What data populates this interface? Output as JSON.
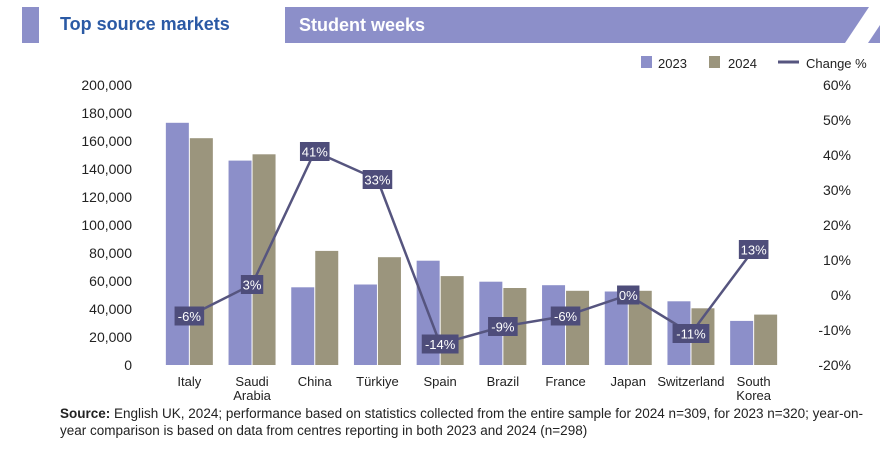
{
  "header": {
    "left_title": "Top source markets",
    "right_title": "Student weeks"
  },
  "colors": {
    "series_2023": "#8c8fc9",
    "series_2024": "#9b957d",
    "change_line": "#56557f",
    "label_box": "#4e4d7a",
    "accent": "#8c8fc9",
    "title_blue": "#2b5aa5"
  },
  "chart_data": {
    "type": "bar",
    "categories": [
      "Italy",
      "Saudi\nArabia",
      "China",
      "Türkiye",
      "Spain",
      "Brazil",
      "France",
      "Japan",
      "Switzerland",
      "South\nKorea"
    ],
    "series": [
      {
        "name": "2023",
        "values": [
          173000,
          146000,
          55500,
          57500,
          74500,
          59500,
          57000,
          52500,
          45500,
          31500
        ]
      },
      {
        "name": "2024",
        "values": [
          162000,
          150500,
          81500,
          77000,
          63500,
          55000,
          53000,
          53000,
          40500,
          36000
        ]
      }
    ],
    "line_series": {
      "name": "Change %",
      "values": [
        -6,
        3,
        41,
        33,
        -14,
        -9,
        -6,
        0,
        -11,
        13
      ],
      "labels": [
        "-6%",
        "3%",
        "41%",
        "33%",
        "-14%",
        "-9%",
        "-6%",
        "0%",
        "-11%",
        "13%"
      ]
    },
    "y_left": {
      "min": 0,
      "max": 200000,
      "ticks": [
        "0",
        "20,000",
        "40,000",
        "60,000",
        "80,000",
        "100,000",
        "120,000",
        "140,000",
        "160,000",
        "180,000",
        "200,000"
      ]
    },
    "y_right": {
      "min": -20,
      "max": 60,
      "ticks": [
        "-20%",
        "-10%",
        "0%",
        "10%",
        "20%",
        "30%",
        "40%",
        "50%",
        "60%"
      ]
    },
    "legend": [
      "2023",
      "2024",
      "Change %"
    ],
    "legend_position": "top-right"
  },
  "source": {
    "label": "Source:",
    "text": " English UK, 2024; performance based on statistics collected from the entire sample for 2024 n=309, for 2023 n=320; year-on-year comparison is based on data from centres reporting in both 2023 and 2024 (n=298)"
  }
}
